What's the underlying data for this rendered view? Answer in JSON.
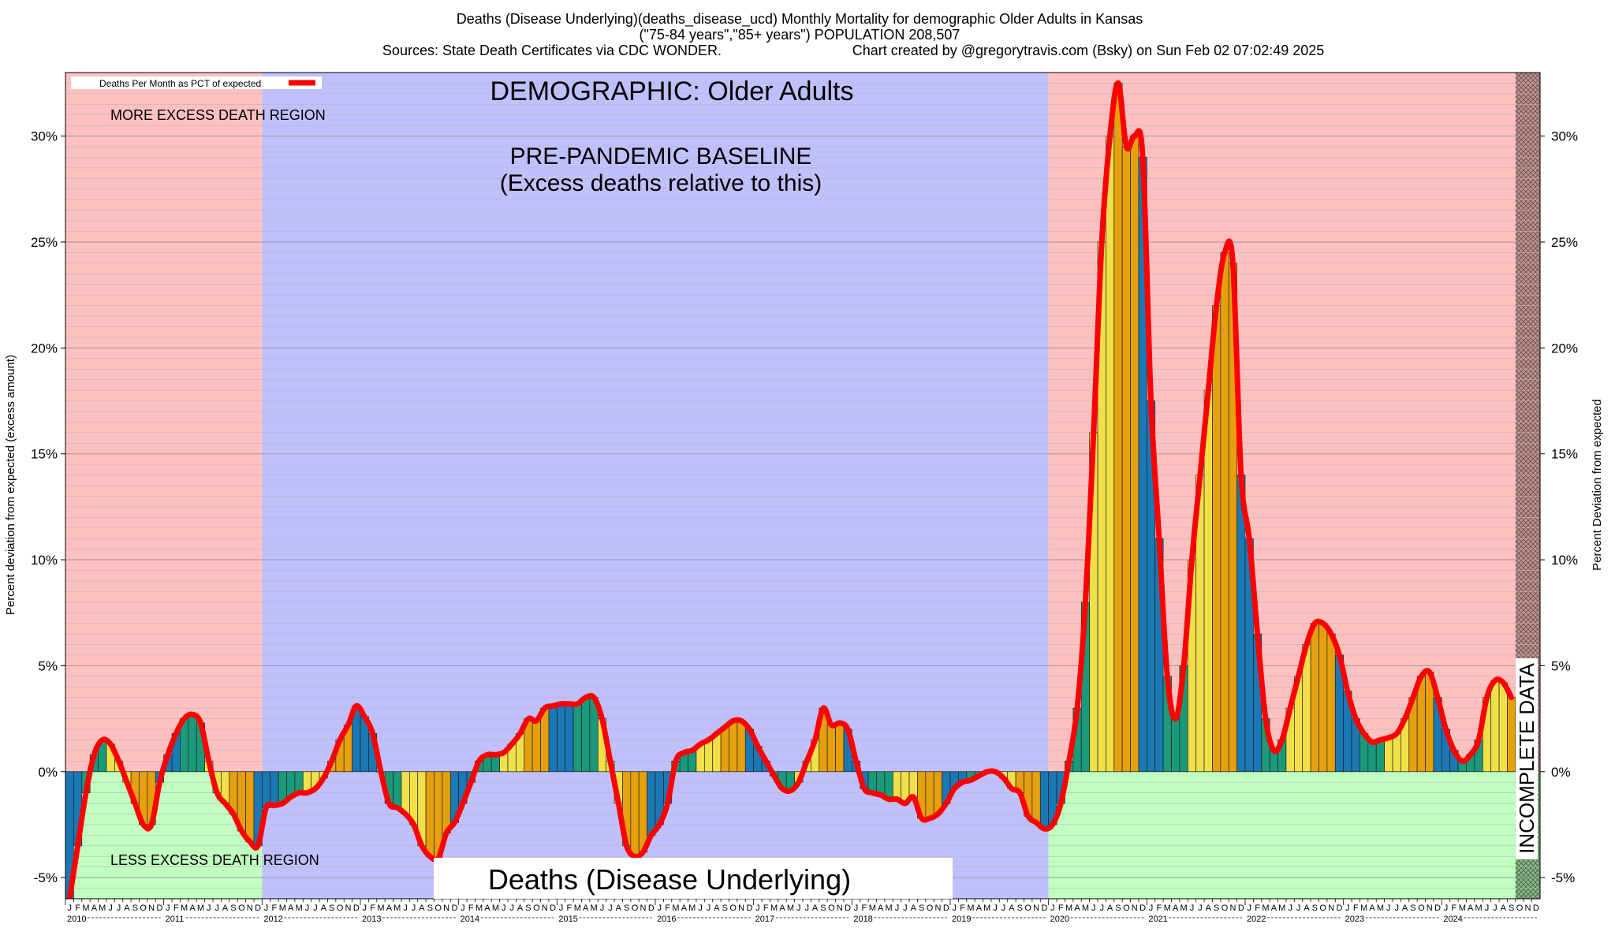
{
  "title_lines": [
    "Deaths (Disease Underlying)(deaths_disease_ucd) Monthly Mortality for demographic Older Adults in Kansas",
    "(\"75-84 years\",\"85+ years\") POPULATION 208,507"
  ],
  "sources": "Sources: State Death Certificates via CDC WONDER.",
  "created_by": "Chart created by @gregorytravis.com (Bsky) on Sun Feb 02 07:02:49 2025",
  "annotations": {
    "demographic": "DEMOGRAPHIC: Older Adults",
    "more_excess": "MORE EXCESS DEATH REGION",
    "less_excess": "LESS EXCESS DEATH REGION",
    "baseline_line1": "PRE-PANDEMIC BASELINE",
    "baseline_line2": "(Excess deaths relative to this)",
    "incomplete": "INCOMPLETE DATA",
    "bottom_label": "Deaths (Disease Underlying)"
  },
  "colors": {
    "excess_region": "#ffc0c0",
    "baseline_region": "#c0c0ff",
    "less_region": "#c0ffc0",
    "incomplete_region": "#cc8888",
    "line": "#ff0000",
    "bar_winter": "#1a78b4",
    "bar_spring": "#1a9a7a",
    "bar_summer": "#f2e04a",
    "bar_autumn": "#e6a00e"
  },
  "chart_data": {
    "type": "bar",
    "title": "Deaths (Disease Underlying)(deaths_disease_ucd) Monthly Mortality for demographic Older Adults in Kansas",
    "ylabel_left": "Percent deviation from expected (excess amount)",
    "ylabel_right": "Percent Deviation from expected",
    "ylim": [
      -6,
      33
    ],
    "yticks": [
      -5,
      0,
      5,
      10,
      15,
      20,
      25,
      30
    ],
    "ytick_labels": [
      "-5%",
      "0%",
      "5%",
      "10%",
      "15%",
      "20%",
      "25%",
      "30%"
    ],
    "legend": "Deaths Per Month as PCT of expected",
    "legend_placement": "top-left",
    "grid": true,
    "start_year": 2010,
    "month_letters": [
      "J",
      "F",
      "M",
      "A",
      "M",
      "J",
      "J",
      "A",
      "S",
      "O",
      "N",
      "D"
    ],
    "years": [
      "2010",
      "2011",
      "2012",
      "2013",
      "2014",
      "2015",
      "2016",
      "2017",
      "2018",
      "2019",
      "2020",
      "2021",
      "2022",
      "2023",
      "2024"
    ],
    "baseline_range": [
      "2012-01",
      "2019-12"
    ],
    "incomplete_from": "2024-10",
    "values": [
      -6.0,
      -3.5,
      -1.0,
      0.8,
      1.5,
      1.3,
      0.5,
      -0.5,
      -1.5,
      -2.5,
      -2.5,
      -0.5,
      0.8,
      1.8,
      2.5,
      2.7,
      2.3,
      0.5,
      -1.0,
      -1.5,
      -2.0,
      -2.8,
      -3.3,
      -3.5,
      -1.7,
      -1.6,
      -1.5,
      -1.2,
      -1.0,
      -1.0,
      -0.8,
      -0.3,
      0.5,
      1.5,
      2.2,
      3.1,
      2.6,
      1.8,
      0.0,
      -1.5,
      -1.7,
      -2.0,
      -2.5,
      -3.5,
      -4.0,
      -4.1,
      -2.9,
      -2.4,
      -1.5,
      -0.5,
      0.5,
      0.8,
      0.8,
      0.9,
      1.3,
      1.8,
      2.5,
      2.4,
      3.0,
      3.1,
      3.2,
      3.2,
      3.2,
      3.5,
      3.5,
      2.5,
      0.5,
      -1.5,
      -3.5,
      -4.0,
      -3.8,
      -3.0,
      -2.5,
      -1.5,
      0.5,
      0.9,
      1.0,
      1.3,
      1.5,
      1.8,
      2.1,
      2.4,
      2.4,
      2.0,
      1.2,
      0.5,
      -0.2,
      -0.8,
      -0.9,
      -0.5,
      0.5,
      1.5,
      3.0,
      2.2,
      2.3,
      2.0,
      0.5,
      -0.8,
      -1.0,
      -1.1,
      -1.3,
      -1.3,
      -1.5,
      -1.2,
      -2.2,
      -2.2,
      -2.0,
      -1.5,
      -0.8,
      -0.5,
      -0.4,
      -0.2,
      0.0,
      0.0,
      -0.3,
      -0.8,
      -1.0,
      -2.1,
      -2.4,
      -2.7,
      -2.5,
      -1.5,
      0.5,
      3.0,
      8.0,
      16.0,
      25.0,
      30.0,
      32.5,
      29.5,
      30.0,
      29.0,
      17.5,
      11.0,
      4.5,
      2.5,
      5.0,
      10.0,
      14.0,
      18.0,
      22.0,
      24.5,
      24.0,
      14.0,
      11.0,
      6.5,
      2.5,
      1.0,
      1.5,
      3.0,
      4.5,
      6.0,
      7.0,
      7.0,
      6.5,
      5.5,
      3.8,
      2.5,
      1.8,
      1.4,
      1.5,
      1.6,
      1.8,
      2.5,
      3.5,
      4.5,
      4.7,
      3.5,
      2.0,
      1.0,
      0.5,
      0.8,
      1.5,
      3.5,
      4.3,
      4.2,
      3.5
    ]
  }
}
